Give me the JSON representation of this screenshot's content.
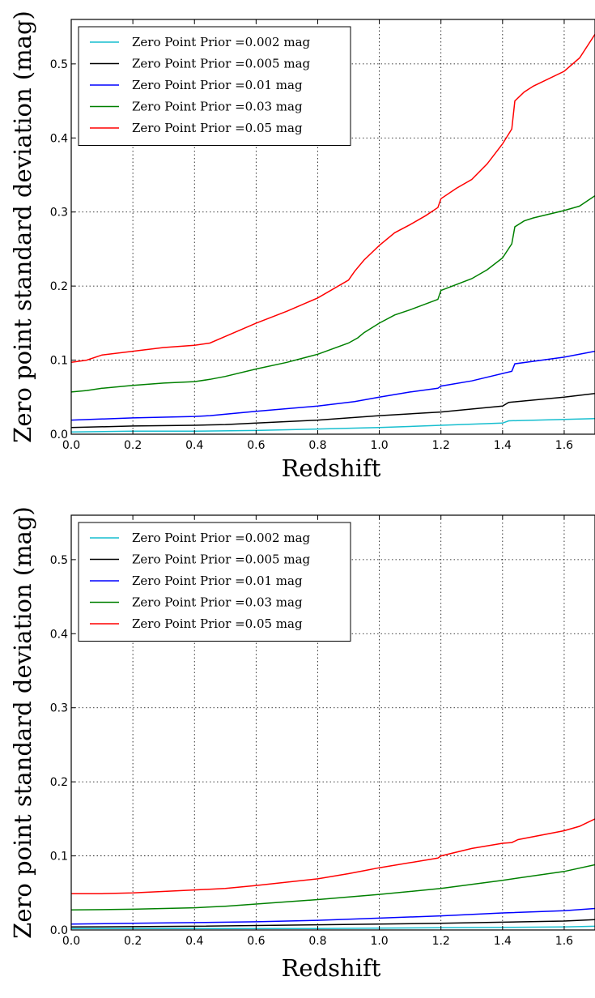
{
  "chart_data": [
    {
      "type": "line",
      "xlabel": "Redshift",
      "ylabel": "Zero point standard deviation (mag)",
      "xlim": [
        0.0,
        1.7
      ],
      "ylim": [
        0.0,
        0.56
      ],
      "xticks": [
        "0.0",
        "0.2",
        "0.4",
        "0.6",
        "0.8",
        "1.0",
        "1.2",
        "1.4",
        "1.6"
      ],
      "yticks": [
        "0.0",
        "0.1",
        "0.2",
        "0.3",
        "0.4",
        "0.5"
      ],
      "grid": true,
      "legend_position": "top-left",
      "series": [
        {
          "name": "Zero Point Prior =0.002 mag",
          "color": "#17becf",
          "x": [
            0.0,
            0.2,
            0.4,
            0.6,
            0.8,
            1.0,
            1.2,
            1.4,
            1.42,
            1.6,
            1.7
          ],
          "y": [
            0.003,
            0.004,
            0.004,
            0.005,
            0.007,
            0.009,
            0.012,
            0.015,
            0.018,
            0.02,
            0.021
          ]
        },
        {
          "name": "Zero Point Prior =0.005 mag",
          "color": "#000000",
          "x": [
            0.0,
            0.2,
            0.4,
            0.5,
            0.6,
            0.8,
            1.0,
            1.2,
            1.4,
            1.42,
            1.6,
            1.7
          ],
          "y": [
            0.009,
            0.011,
            0.012,
            0.013,
            0.015,
            0.019,
            0.025,
            0.03,
            0.038,
            0.043,
            0.05,
            0.055
          ]
        },
        {
          "name": "Zero Point Prior =0.01 mag",
          "color": "#0000ff",
          "x": [
            0.0,
            0.2,
            0.4,
            0.45,
            0.6,
            0.8,
            0.92,
            1.0,
            1.1,
            1.19,
            1.2,
            1.3,
            1.43,
            1.44,
            1.6,
            1.7
          ],
          "y": [
            0.019,
            0.022,
            0.024,
            0.025,
            0.031,
            0.038,
            0.044,
            0.05,
            0.057,
            0.062,
            0.065,
            0.072,
            0.085,
            0.095,
            0.104,
            0.112
          ]
        },
        {
          "name": "Zero Point Prior =0.03 mag",
          "color": "#008000",
          "x": [
            0.0,
            0.05,
            0.1,
            0.2,
            0.3,
            0.4,
            0.45,
            0.5,
            0.6,
            0.7,
            0.8,
            0.9,
            0.93,
            0.95,
            1.0,
            1.05,
            1.1,
            1.19,
            1.2,
            1.3,
            1.35,
            1.4,
            1.43,
            1.44,
            1.47,
            1.5,
            1.6,
            1.65,
            1.7
          ],
          "y": [
            0.057,
            0.059,
            0.062,
            0.066,
            0.069,
            0.071,
            0.074,
            0.078,
            0.088,
            0.097,
            0.108,
            0.123,
            0.13,
            0.137,
            0.15,
            0.161,
            0.168,
            0.182,
            0.194,
            0.21,
            0.222,
            0.238,
            0.257,
            0.28,
            0.288,
            0.292,
            0.302,
            0.308,
            0.322
          ]
        },
        {
          "name": "Zero Point Prior =0.05 mag",
          "color": "#ff0000",
          "x": [
            0.0,
            0.05,
            0.1,
            0.2,
            0.3,
            0.4,
            0.45,
            0.5,
            0.6,
            0.7,
            0.8,
            0.9,
            0.92,
            0.95,
            1.0,
            1.05,
            1.1,
            1.15,
            1.19,
            1.2,
            1.25,
            1.3,
            1.35,
            1.4,
            1.43,
            1.44,
            1.47,
            1.5,
            1.6,
            1.65,
            1.7
          ],
          "y": [
            0.097,
            0.1,
            0.107,
            0.112,
            0.117,
            0.12,
            0.123,
            0.132,
            0.15,
            0.166,
            0.184,
            0.208,
            0.22,
            0.235,
            0.255,
            0.272,
            0.283,
            0.295,
            0.306,
            0.318,
            0.332,
            0.344,
            0.365,
            0.392,
            0.412,
            0.45,
            0.462,
            0.47,
            0.49,
            0.508,
            0.54
          ]
        }
      ]
    },
    {
      "type": "line",
      "xlabel": "Redshift",
      "ylabel": "Zero point standard deviation (mag)",
      "xlim": [
        0.0,
        1.7
      ],
      "ylim": [
        0.0,
        0.56
      ],
      "xticks": [
        "0.0",
        "0.2",
        "0.4",
        "0.6",
        "0.8",
        "1.0",
        "1.2",
        "1.4",
        "1.6"
      ],
      "yticks": [
        "0.0",
        "0.1",
        "0.2",
        "0.3",
        "0.4",
        "0.5"
      ],
      "grid": true,
      "legend_position": "top-left",
      "series": [
        {
          "name": "Zero Point Prior =0.002 mag",
          "color": "#17becf",
          "x": [
            0.0,
            0.4,
            0.8,
            1.2,
            1.6,
            1.7
          ],
          "y": [
            0.002,
            0.002,
            0.002,
            0.003,
            0.004,
            0.005
          ]
        },
        {
          "name": "Zero Point Prior =0.005 mag",
          "color": "#000000",
          "x": [
            0.0,
            0.4,
            0.8,
            1.2,
            1.6,
            1.7
          ],
          "y": [
            0.004,
            0.005,
            0.007,
            0.009,
            0.012,
            0.014
          ]
        },
        {
          "name": "Zero Point Prior =0.01 mag",
          "color": "#0000ff",
          "x": [
            0.0,
            0.2,
            0.4,
            0.6,
            0.8,
            1.0,
            1.2,
            1.4,
            1.6,
            1.7
          ],
          "y": [
            0.008,
            0.009,
            0.01,
            0.011,
            0.013,
            0.016,
            0.019,
            0.023,
            0.026,
            0.029
          ]
        },
        {
          "name": "Zero Point Prior =0.03 mag",
          "color": "#008000",
          "x": [
            0.0,
            0.2,
            0.4,
            0.5,
            0.6,
            0.8,
            1.0,
            1.2,
            1.4,
            1.6,
            1.7
          ],
          "y": [
            0.027,
            0.028,
            0.03,
            0.032,
            0.035,
            0.041,
            0.048,
            0.056,
            0.067,
            0.079,
            0.088
          ]
        },
        {
          "name": "Zero Point Prior =0.05 mag",
          "color": "#ff0000",
          "x": [
            0.0,
            0.1,
            0.2,
            0.4,
            0.5,
            0.6,
            0.8,
            0.9,
            0.95,
            1.0,
            1.19,
            1.2,
            1.3,
            1.4,
            1.43,
            1.45,
            1.6,
            1.65,
            1.7
          ],
          "y": [
            0.049,
            0.049,
            0.05,
            0.054,
            0.056,
            0.06,
            0.069,
            0.076,
            0.08,
            0.084,
            0.097,
            0.1,
            0.11,
            0.117,
            0.118,
            0.122,
            0.134,
            0.14,
            0.15
          ]
        }
      ]
    }
  ]
}
